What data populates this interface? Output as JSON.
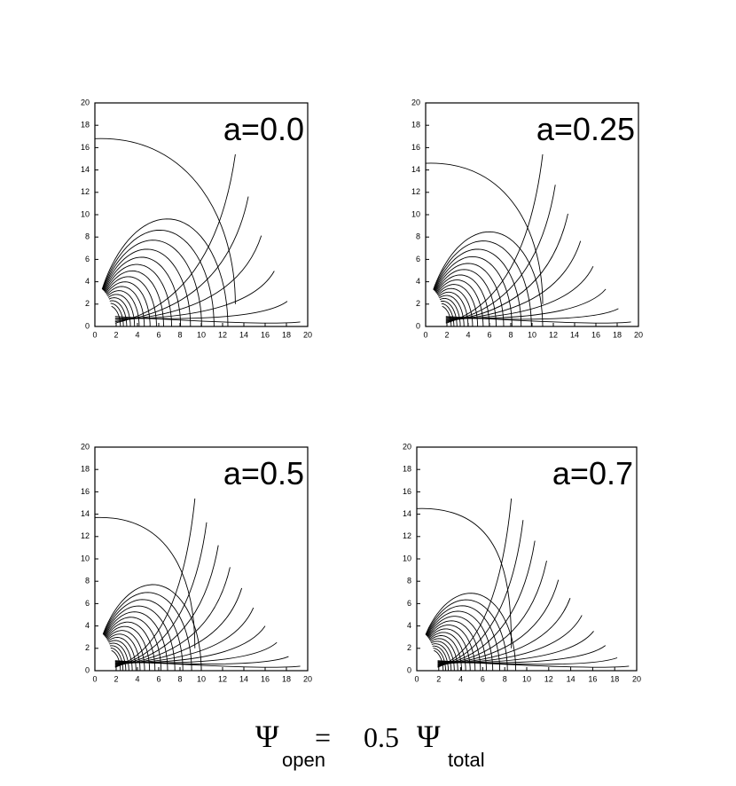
{
  "chart_data": [
    {
      "type": "contour",
      "annotation": "a=0.0",
      "xlim": [
        0,
        20
      ],
      "ylim": [
        0,
        20
      ],
      "xticks": [
        0,
        2,
        4,
        6,
        8,
        10,
        12,
        14,
        16,
        18,
        20
      ],
      "yticks": [
        0,
        2,
        4,
        6,
        8,
        10,
        12,
        14,
        16,
        18,
        20
      ]
    },
    {
      "type": "contour",
      "annotation": "a=0.25",
      "xlim": [
        0,
        20
      ],
      "ylim": [
        0,
        20
      ],
      "xticks": [
        0,
        2,
        4,
        6,
        8,
        10,
        12,
        14,
        16,
        18,
        20
      ],
      "yticks": [
        0,
        2,
        4,
        6,
        8,
        10,
        12,
        14,
        16,
        18,
        20
      ]
    },
    {
      "type": "contour",
      "annotation": "a=0.5",
      "xlim": [
        0,
        20
      ],
      "ylim": [
        0,
        20
      ],
      "xticks": [
        0,
        2,
        4,
        6,
        8,
        10,
        12,
        14,
        16,
        18,
        20
      ],
      "yticks": [
        0,
        2,
        4,
        6,
        8,
        10,
        12,
        14,
        16,
        18,
        20
      ]
    },
    {
      "type": "contour",
      "annotation": "a=0.7",
      "xlim": [
        0,
        20
      ],
      "ylim": [
        0,
        20
      ],
      "xticks": [
        0,
        2,
        4,
        6,
        8,
        10,
        12,
        14,
        16,
        18,
        20
      ],
      "yticks": [
        0,
        2,
        4,
        6,
        8,
        10,
        12,
        14,
        16,
        18,
        20
      ]
    }
  ],
  "caption": {
    "symbol": "Ψ",
    "open": "open",
    "equals": "=",
    "factor": "0.5",
    "total": "total"
  }
}
